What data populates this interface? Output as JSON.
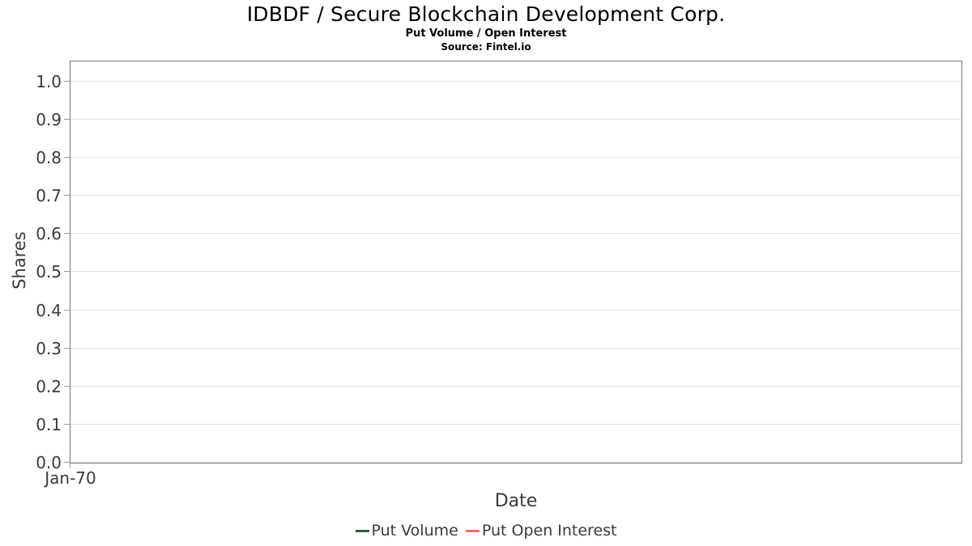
{
  "header": {
    "title": "IDBDF / Secure Blockchain Development Corp.",
    "subtitle": "Put Volume / Open Interest",
    "source": "Source: Fintel.io"
  },
  "chart_data": {
    "type": "line",
    "title": "IDBDF / Secure Blockchain Development Corp.",
    "subtitle": "Put Volume / Open Interest",
    "source": "Source: Fintel.io",
    "xlabel": "Date",
    "ylabel": "Shares",
    "x_ticks": [
      "Jan-70"
    ],
    "y_ticks": [
      "0.0",
      "0.1",
      "0.2",
      "0.3",
      "0.4",
      "0.5",
      "0.6",
      "0.7",
      "0.8",
      "0.9",
      "1.0"
    ],
    "ylim": [
      0,
      1.053
    ],
    "grid": "horizontal",
    "plot_border_color": "#737373",
    "gridline_color": "#e4e4e4",
    "legend_position": "bottom-center",
    "series": [
      {
        "name": "Put Volume",
        "color": "#335c3b",
        "values": []
      },
      {
        "name": "Put Open Interest",
        "color": "#f96a6a",
        "values": []
      }
    ]
  }
}
